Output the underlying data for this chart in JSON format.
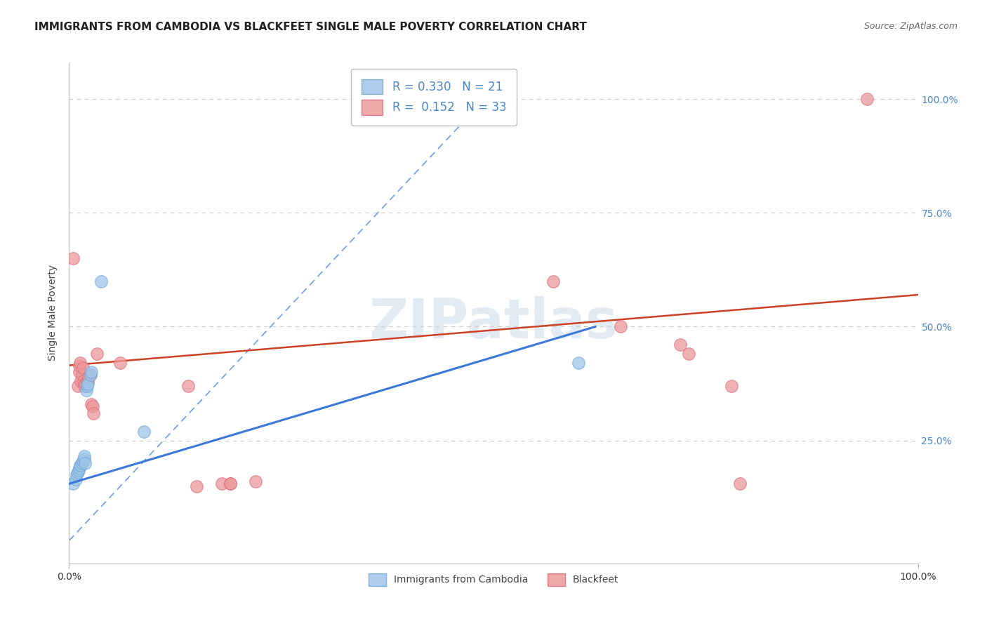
{
  "title": "IMMIGRANTS FROM CAMBODIA VS BLACKFEET SINGLE MALE POVERTY CORRELATION CHART",
  "source": "Source: ZipAtlas.com",
  "ylabel": "Single Male Poverty",
  "watermark": "ZIPatlas",
  "xlim": [
    0.0,
    1.0
  ],
  "ylim": [
    -0.02,
    1.08
  ],
  "yticks": [
    0.0,
    0.25,
    0.5,
    0.75,
    1.0
  ],
  "ytick_labels": [
    "",
    "25.0%",
    "50.0%",
    "75.0%",
    "100.0%"
  ],
  "xtick_labels": [
    "0.0%",
    "100.0%"
  ],
  "legend_blue_r": "R = 0.330",
  "legend_blue_n": "N = 21",
  "legend_pink_r": "R =  0.152",
  "legend_pink_n": "N = 33",
  "blue_color": "#9fc5e8",
  "blue_edge_color": "#6fa8dc",
  "pink_color": "#ea9999",
  "pink_edge_color": "#e06c7c",
  "blue_line_color": "#3c78d8",
  "pink_line_color": "#cc4125",
  "dashed_line_color": "#6d9eeb",
  "grid_color": "#cccccc",
  "blue_points": [
    [
      0.005,
      0.155
    ],
    [
      0.008,
      0.165
    ],
    [
      0.009,
      0.175
    ],
    [
      0.01,
      0.18
    ],
    [
      0.011,
      0.185
    ],
    [
      0.012,
      0.19
    ],
    [
      0.013,
      0.195
    ],
    [
      0.014,
      0.195
    ],
    [
      0.015,
      0.2
    ],
    [
      0.016,
      0.205
    ],
    [
      0.018,
      0.21
    ],
    [
      0.018,
      0.215
    ],
    [
      0.019,
      0.2
    ],
    [
      0.02,
      0.36
    ],
    [
      0.021,
      0.37
    ],
    [
      0.022,
      0.375
    ],
    [
      0.025,
      0.395
    ],
    [
      0.026,
      0.4
    ],
    [
      0.038,
      0.6
    ],
    [
      0.088,
      0.27
    ],
    [
      0.6,
      0.42
    ]
  ],
  "pink_points": [
    [
      0.18,
      0.155
    ],
    [
      0.19,
      0.155
    ],
    [
      0.22,
      0.16
    ],
    [
      0.005,
      0.65
    ],
    [
      0.01,
      0.37
    ],
    [
      0.012,
      0.4
    ],
    [
      0.012,
      0.415
    ],
    [
      0.013,
      0.42
    ],
    [
      0.014,
      0.38
    ],
    [
      0.015,
      0.395
    ],
    [
      0.016,
      0.41
    ],
    [
      0.017,
      0.38
    ],
    [
      0.018,
      0.37
    ],
    [
      0.019,
      0.375
    ],
    [
      0.021,
      0.38
    ],
    [
      0.022,
      0.38
    ],
    [
      0.023,
      0.39
    ],
    [
      0.025,
      0.395
    ],
    [
      0.026,
      0.33
    ],
    [
      0.028,
      0.325
    ],
    [
      0.029,
      0.31
    ],
    [
      0.033,
      0.44
    ],
    [
      0.06,
      0.42
    ],
    [
      0.14,
      0.37
    ],
    [
      0.15,
      0.15
    ],
    [
      0.19,
      0.155
    ],
    [
      0.57,
      0.6
    ],
    [
      0.65,
      0.5
    ],
    [
      0.72,
      0.46
    ],
    [
      0.73,
      0.44
    ],
    [
      0.78,
      0.37
    ],
    [
      0.79,
      0.155
    ],
    [
      0.94,
      1.0
    ]
  ],
  "title_fontsize": 11,
  "axis_fontsize": 10,
  "legend_fontsize": 12
}
